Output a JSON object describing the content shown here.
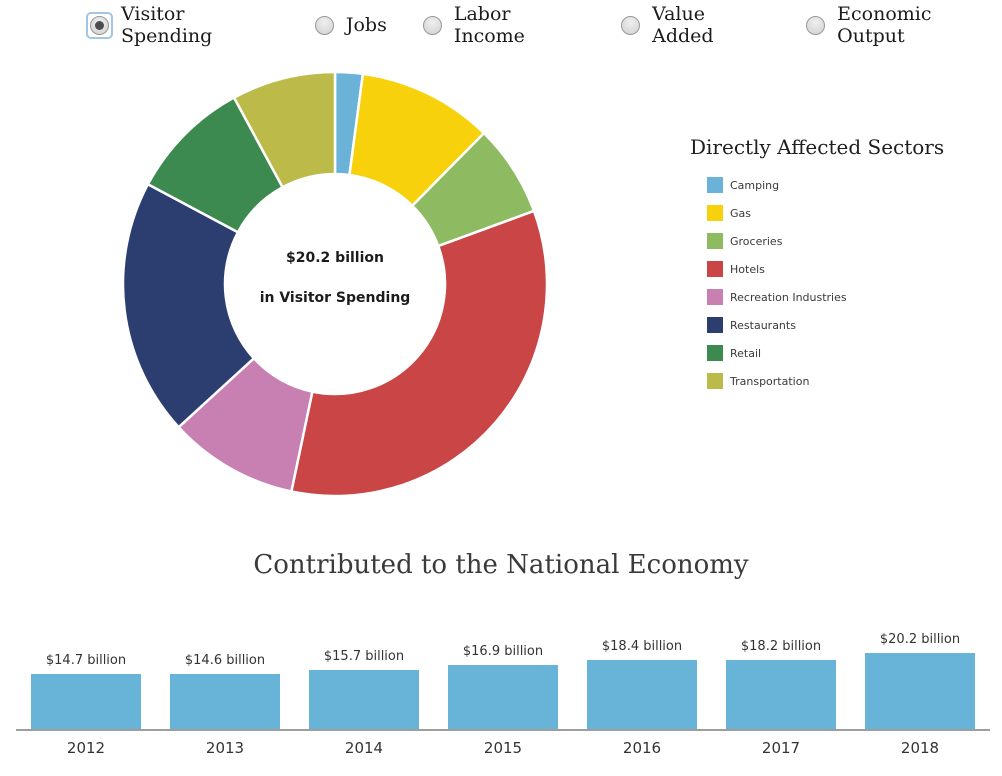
{
  "controls": {
    "type": "radio-group",
    "options": [
      {
        "label": "Visitor Spending",
        "selected": true
      },
      {
        "label": "Jobs",
        "selected": false
      },
      {
        "label": "Labor Income",
        "selected": false
      },
      {
        "label": "Value Added",
        "selected": false
      },
      {
        "label": "Economic Output",
        "selected": false
      }
    ]
  },
  "chart_data": [
    {
      "id": "visitor-spending-by-sector-donut",
      "type": "pie",
      "title": "Directly Affected Sectors",
      "center_label_line1": "$20.2 billion",
      "center_label_line2": "in Visitor Spending",
      "labels": [
        "Camping",
        "Gas",
        "Groceries",
        "Hotels",
        "Recreation Industries",
        "Restaurants",
        "Retail",
        "Transportation"
      ],
      "values_pct_of_total": [
        2.1,
        10.3,
        7.0,
        33.9,
        9.9,
        19.6,
        9.3,
        7.9
      ],
      "colors": [
        "#6ab2d8",
        "#f8d10d",
        "#8eba62",
        "#c94546",
        "#c87fb2",
        "#2c3d70",
        "#3c8a50",
        "#bcbb4a"
      ],
      "legend_position": "right",
      "donut_hole": true,
      "start_angle_deg": 0,
      "direction": "clockwise"
    },
    {
      "id": "national-economy-contribution-by-year",
      "type": "bar",
      "title": "Contributed to the National Economy",
      "categories": [
        "2012",
        "2013",
        "2014",
        "2015",
        "2016",
        "2017",
        "2018"
      ],
      "values": [
        14.7,
        14.6,
        15.7,
        16.9,
        18.4,
        18.2,
        20.2
      ],
      "data_labels": [
        "$14.7 billion",
        "$14.6 billion",
        "$15.7 billion",
        "$16.9 billion",
        "$18.4 billion",
        "$18.2 billion",
        "$20.2 billion"
      ],
      "units": "billions of dollars",
      "bar_color": "#68b4d9",
      "xlabel": "",
      "ylabel": "",
      "ylim": [
        0,
        21
      ],
      "grid": false,
      "legend_position": "none"
    }
  ]
}
